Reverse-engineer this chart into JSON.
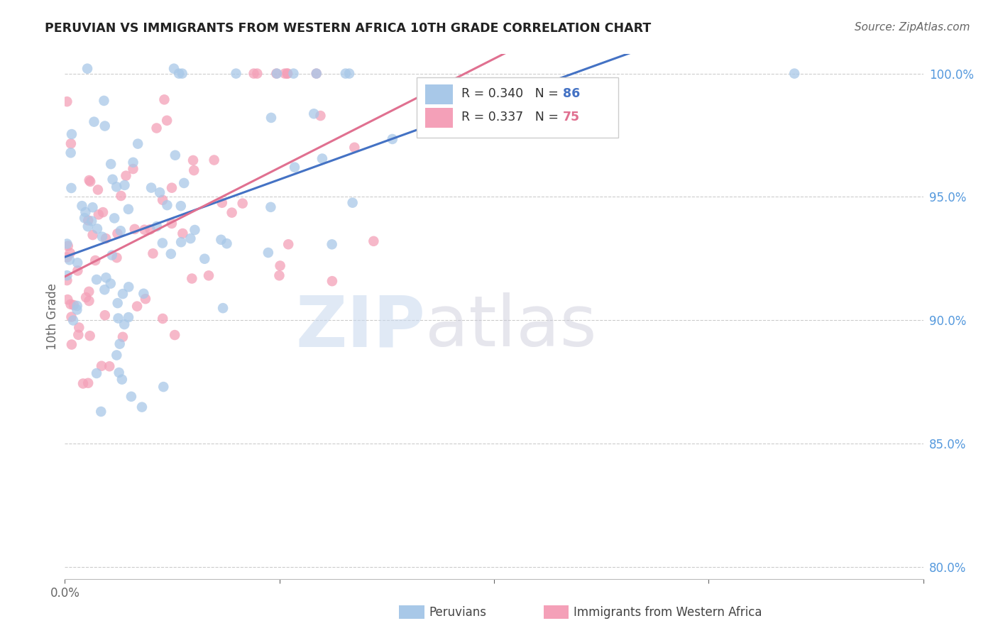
{
  "title": "PERUVIAN VS IMMIGRANTS FROM WESTERN AFRICA 10TH GRADE CORRELATION CHART",
  "source": "Source: ZipAtlas.com",
  "ylabel": "10th Grade",
  "legend_series1": "Peruvians",
  "legend_series2": "Immigrants from Western Africa",
  "r1": 0.34,
  "r2": 0.337,
  "n1": 86,
  "n2": 75,
  "color1": "#a8c8e8",
  "color2": "#f4a0b8",
  "line_color1": "#4472c4",
  "line_color2": "#e07090",
  "xmin": 0.0,
  "xmax": 0.08,
  "ymin": 0.795,
  "ymax": 1.008,
  "xticks": [
    0.0,
    0.02,
    0.04,
    0.06,
    0.08
  ],
  "xtick_labels": [
    "0.0%",
    "",
    "",
    "",
    ""
  ],
  "yticks": [
    0.8,
    0.85,
    0.9,
    0.95,
    1.0
  ],
  "ytick_labels": [
    "80.0%",
    "85.0%",
    "90.0%",
    "95.0%",
    "100.0%"
  ],
  "background_color": "#ffffff",
  "watermark1": "ZIP",
  "watermark2": "atlas",
  "seed1": 7,
  "seed2": 13
}
